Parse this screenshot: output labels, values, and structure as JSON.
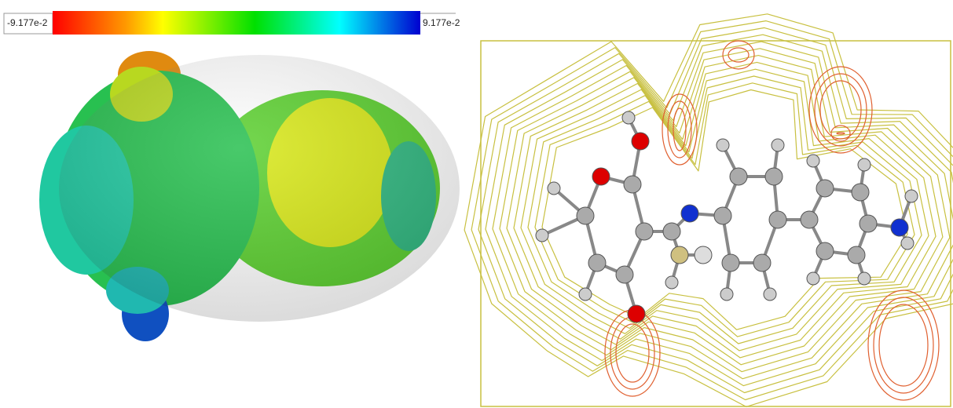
{
  "colorbar": {
    "min_label": "-9.177e-2",
    "max_label": "9.177e-2"
  }
}
